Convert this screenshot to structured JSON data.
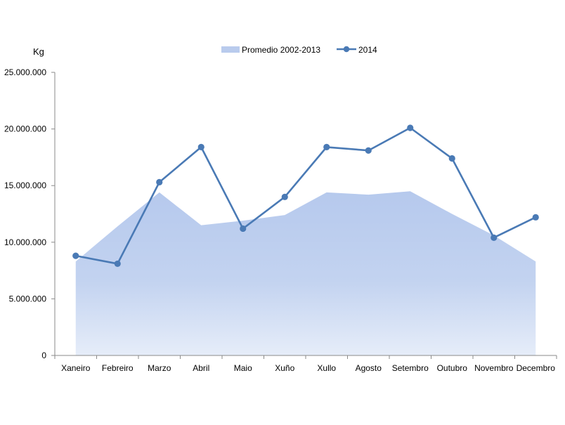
{
  "chart_data": {
    "type": "area",
    "title": "",
    "xlabel": "",
    "ylabel": "Kg",
    "ylim": [
      0,
      25000000
    ],
    "yticks": [
      0,
      5000000,
      10000000,
      15000000,
      20000000,
      25000000
    ],
    "ytick_labels": [
      "0",
      "5.000.000",
      "10.000.000",
      "15.000.000",
      "20.000.000",
      "25.000.000"
    ],
    "grid": false,
    "legend_position": "top-center",
    "categories": [
      "Xaneiro",
      "Febreiro",
      "Marzo",
      "Abril",
      "Maio",
      "Xuño",
      "Xullo",
      "Agosto",
      "Setembro",
      "Outubro",
      "Novembro",
      "Decembro"
    ],
    "series": [
      {
        "name": "Promedio 2002-2013",
        "kind": "area",
        "color": "#b9cbed",
        "values": [
          8300000,
          11400000,
          14400000,
          11500000,
          11900000,
          12400000,
          14400000,
          14200000,
          14500000,
          12500000,
          10600000,
          8300000
        ]
      },
      {
        "name": "2014",
        "kind": "line",
        "color": "#4a7ab5",
        "values": [
          8800000,
          8100000,
          15300000,
          18400000,
          11200000,
          14000000,
          18400000,
          18100000,
          20100000,
          17400000,
          10400000,
          12200000
        ]
      }
    ]
  }
}
